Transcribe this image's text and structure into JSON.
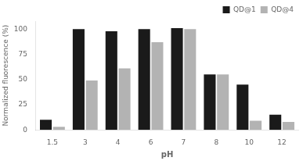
{
  "chart_data": {
    "type": "bar",
    "categories": [
      "1.5",
      "3",
      "4",
      "6",
      "7",
      "8",
      "10",
      "12"
    ],
    "series": [
      {
        "name": "QD@1",
        "color": "#1a1a1a",
        "values": [
          10,
          100,
          98,
          100,
          101,
          55,
          45,
          15
        ]
      },
      {
        "name": "QD@4",
        "color": "#b3b3b3",
        "values": [
          3,
          49,
          61,
          87,
          100,
          55,
          9,
          8
        ]
      }
    ],
    "xlabel": "pH",
    "ylabel": "Normalized fluorescence (%)",
    "ylim": [
      0,
      108
    ],
    "yticks": [
      0,
      25,
      50,
      75,
      100
    ],
    "grid": false,
    "legend": "upper right"
  }
}
